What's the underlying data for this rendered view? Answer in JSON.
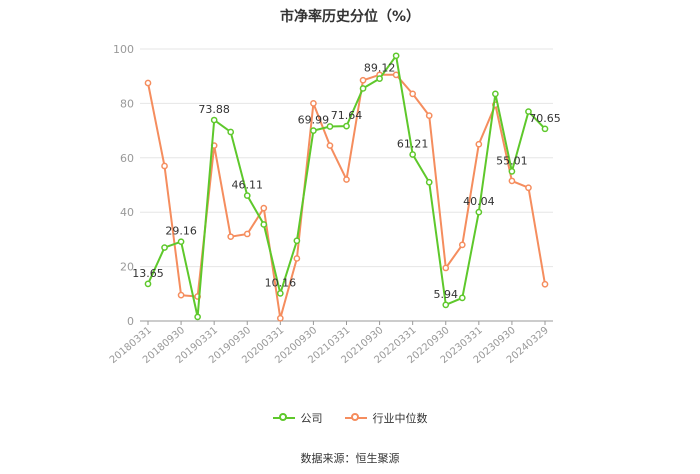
{
  "title": "市净率历史分位（%）",
  "source": "数据来源：恒生聚源",
  "colors": {
    "company": "#5ec82b",
    "industry": "#f58d5e",
    "grid": "#e6e6e6",
    "axis": "#999999"
  },
  "chart_data": {
    "type": "line",
    "ylim": [
      0,
      100
    ],
    "yticks": [
      0,
      20,
      40,
      60,
      80,
      100
    ],
    "grid": true,
    "legend_position": "bottom-center",
    "x_tick_labels": [
      "20180331",
      "20180930",
      "20190331",
      "20190930",
      "20200331",
      "20200930",
      "20210331",
      "20210930",
      "20220331",
      "20220930",
      "20230331",
      "20230930",
      "20240329"
    ],
    "series": [
      {
        "name": "公司",
        "values": [
          13.65,
          27,
          29.16,
          1.5,
          73.88,
          69.5,
          46.11,
          35.5,
          10.16,
          29.5,
          69.99,
          71.5,
          71.64,
          85.5,
          89.12,
          97.5,
          61.21,
          51,
          5.94,
          8.5,
          40.04,
          83.5,
          55.01,
          77,
          70.65
        ],
        "labels": {
          "0": "13.65",
          "2": "29.16",
          "4": "73.88",
          "6": "46.11",
          "8": "10.16",
          "10": "69.99",
          "12": "71.64",
          "14": "89.12",
          "16": "61.21",
          "18": "5.94",
          "20": "40.04",
          "22": "55.01",
          "24": "70.65"
        }
      },
      {
        "name": "行业中位数",
        "values": [
          87.5,
          57,
          9.5,
          9,
          64.5,
          31,
          32,
          41.5,
          1,
          23,
          80,
          64.5,
          52,
          88.5,
          90.5,
          90.5,
          83.5,
          75.5,
          19.5,
          28,
          65,
          79.5,
          51.5,
          49,
          13.5
        ]
      }
    ]
  }
}
